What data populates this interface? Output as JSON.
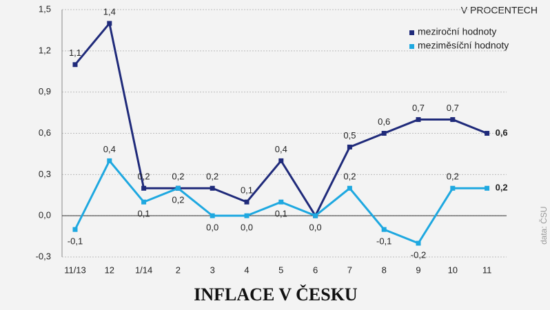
{
  "chart_data": {
    "type": "line",
    "title": "INFLACE V ČESKU",
    "subtitle": "V PROCENTECH",
    "source": "data: ČSU",
    "categories": [
      "11/13",
      "12",
      "1/14",
      "2",
      "3",
      "4",
      "5",
      "6",
      "7",
      "8",
      "9",
      "10",
      "11"
    ],
    "series": [
      {
        "name": "meziroční hodnoty",
        "color": "#1f2a7a",
        "values": [
          1.1,
          1.4,
          0.2,
          0.2,
          0.2,
          0.1,
          0.4,
          0.0,
          0.5,
          0.6,
          0.7,
          0.7,
          0.6
        ],
        "value_labels": [
          "1,1",
          "1,4",
          "0,2",
          "0,2",
          "0,2",
          "0,1",
          "0,4",
          null,
          "0,5",
          "0,6",
          "0,7",
          "0,7",
          "0,6"
        ]
      },
      {
        "name": "meziměsíční hodnoty",
        "color": "#1ea8e0",
        "values": [
          -0.1,
          0.4,
          0.1,
          0.2,
          0.0,
          0.0,
          0.1,
          0.0,
          0.2,
          -0.1,
          -0.2,
          0.2,
          0.2
        ],
        "value_labels": [
          "-0,1",
          "0,4",
          "0,1",
          "0,2",
          "0,0",
          "0,0",
          "0,1",
          "0,0",
          "0,2",
          "-0,1",
          "-0,2",
          "0,2",
          "0,2"
        ]
      }
    ],
    "ylim": [
      -0.3,
      1.5
    ],
    "yticks": [
      {
        "value": -0.3,
        "label": "-0,3"
      },
      {
        "value": 0.0,
        "label": "0,0"
      },
      {
        "value": 0.3,
        "label": "0,3"
      },
      {
        "value": 0.6,
        "label": "0,6"
      },
      {
        "value": 0.9,
        "label": "0,9"
      },
      {
        "value": 1.2,
        "label": "1,2"
      },
      {
        "value": 1.5,
        "label": "1,5"
      }
    ],
    "grid": true
  }
}
